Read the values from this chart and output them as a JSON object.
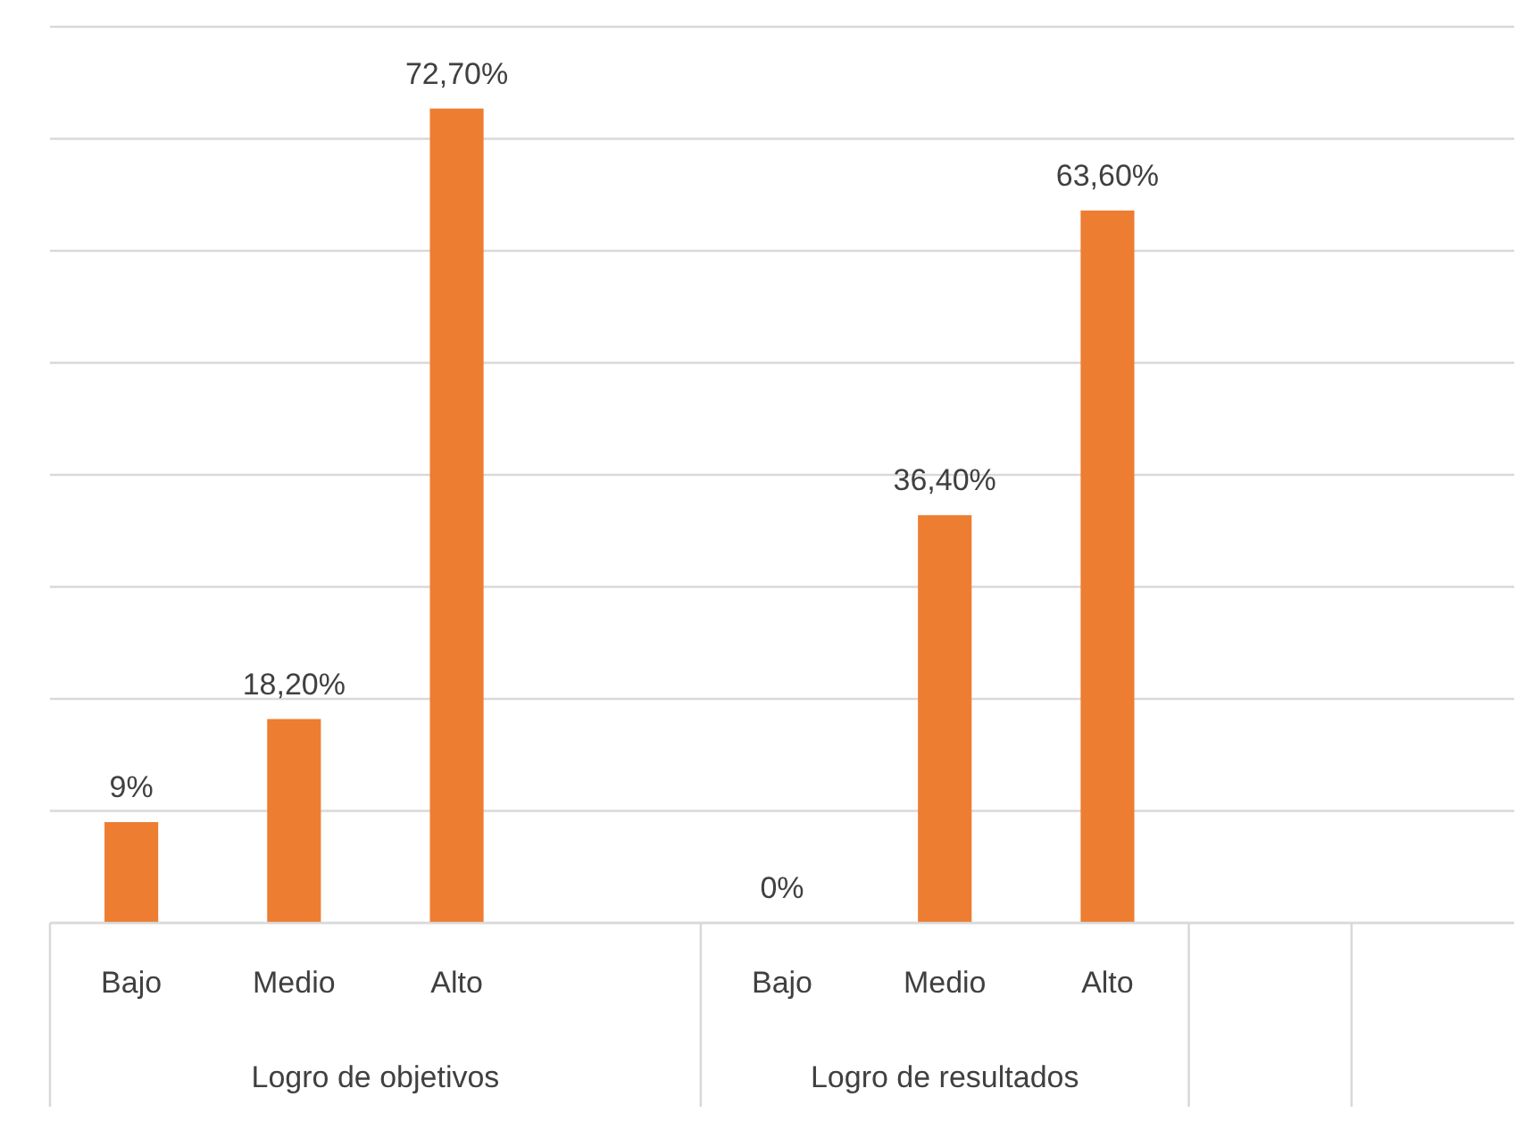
{
  "chart_data": {
    "type": "bar",
    "categories": [
      "Bajo",
      "Medio",
      "Alto",
      null,
      "Bajo",
      "Medio",
      "Alto",
      null,
      null
    ],
    "values": [
      9,
      18.2,
      72.7,
      null,
      0,
      36.4,
      63.6,
      null,
      null
    ],
    "value_labels": [
      "9%",
      "18,20%",
      "72,70%",
      null,
      "0%",
      "36,40%",
      "63,60%",
      null,
      null
    ],
    "color": "#ed7d31",
    "ylim": [
      0,
      80
    ],
    "yticks": [
      {
        "value": 0,
        "label": null
      },
      {
        "value": 10,
        "label": null
      },
      {
        "value": 20,
        "label": null
      },
      {
        "value": 30,
        "label": null
      },
      {
        "value": 40,
        "label": null
      },
      {
        "value": 50,
        "label": null
      },
      {
        "value": 60,
        "label": null
      },
      {
        "value": 70,
        "label": null
      },
      {
        "value": 80,
        "label": null
      }
    ],
    "grid": "y",
    "tick_labels": "x",
    "annotations": [
      "Logro de objetivos",
      "Logro de resultados"
    ]
  }
}
